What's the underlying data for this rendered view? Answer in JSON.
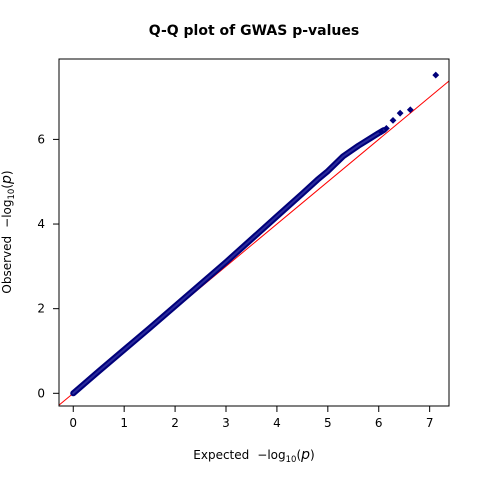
{
  "chart_data": {
    "type": "scatter",
    "title": "Q-Q plot of GWAS p-values",
    "xlabel": {
      "prefix": "Expected",
      "minus": "−",
      "fn": "log",
      "sub": "10",
      "var": "p"
    },
    "ylabel": {
      "prefix": "Observed",
      "minus": "−",
      "fn": "log",
      "sub": "10",
      "var": "p"
    },
    "xlim": [
      -0.28,
      7.38
    ],
    "ylim": [
      -0.3,
      7.9
    ],
    "xticks": [
      0,
      1,
      2,
      3,
      4,
      5,
      6,
      7
    ],
    "yticks": [
      0,
      2,
      4,
      6
    ],
    "reference_line": {
      "x": [
        -0.28,
        7.38
      ],
      "y": [
        -0.28,
        7.38
      ],
      "color": "#ff0000"
    },
    "series": [
      {
        "color": "#00007a",
        "marker": "diamond",
        "curve_points": [
          [
            0.0,
            0.0
          ],
          [
            0.5,
            0.52
          ],
          [
            1.0,
            1.03
          ],
          [
            1.5,
            1.54
          ],
          [
            2.0,
            2.06
          ],
          [
            2.5,
            2.58
          ],
          [
            3.0,
            3.1
          ],
          [
            3.5,
            3.64
          ],
          [
            4.0,
            4.18
          ],
          [
            4.5,
            4.72
          ],
          [
            4.8,
            5.05
          ],
          [
            5.0,
            5.25
          ],
          [
            5.3,
            5.6
          ],
          [
            5.6,
            5.85
          ],
          [
            5.8,
            6.0
          ],
          [
            6.0,
            6.15
          ],
          [
            6.1,
            6.22
          ]
        ],
        "values": [
          {
            "x": 6.05,
            "y": 6.18
          },
          {
            "x": 6.15,
            "y": 6.26
          },
          {
            "x": 6.28,
            "y": 6.45
          },
          {
            "x": 6.42,
            "y": 6.62
          },
          {
            "x": 6.62,
            "y": 6.7
          },
          {
            "x": 7.12,
            "y": 7.52
          }
        ]
      }
    ]
  }
}
